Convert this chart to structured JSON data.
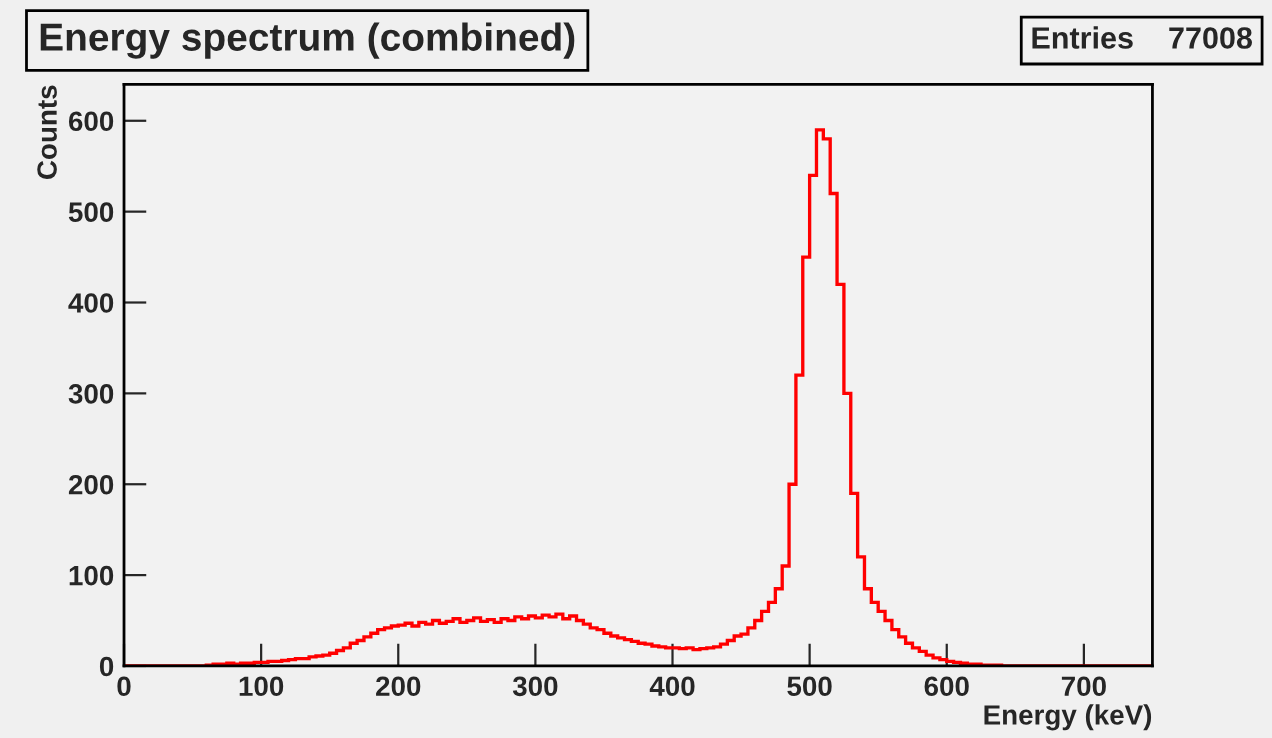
{
  "chart_data": {
    "type": "histogram",
    "title": "Energy spectrum (combined)",
    "xlabel": "Energy (keV)",
    "ylabel": "Counts",
    "annotations": [
      "Entries    77008"
    ],
    "bins": [
      0,
      5,
      10,
      15,
      20,
      25,
      30,
      35,
      40,
      45,
      50,
      55,
      60,
      65,
      70,
      75,
      80,
      85,
      90,
      95,
      100,
      105,
      110,
      115,
      120,
      125,
      130,
      135,
      140,
      145,
      150,
      155,
      160,
      165,
      170,
      175,
      180,
      185,
      190,
      195,
      200,
      205,
      210,
      215,
      220,
      225,
      230,
      235,
      240,
      245,
      250,
      255,
      260,
      265,
      270,
      275,
      280,
      285,
      290,
      295,
      300,
      305,
      310,
      315,
      320,
      325,
      330,
      335,
      340,
      345,
      350,
      355,
      360,
      365,
      370,
      375,
      380,
      385,
      390,
      395,
      400,
      405,
      410,
      415,
      420,
      425,
      430,
      435,
      440,
      445,
      450,
      455,
      460,
      465,
      470,
      475,
      480,
      485,
      490,
      495,
      500,
      505,
      510,
      515,
      520,
      525,
      530,
      535,
      540,
      545,
      550,
      555,
      560,
      565,
      570,
      575,
      580,
      585,
      590,
      595,
      600,
      605,
      610,
      615,
      620,
      625,
      630,
      635,
      640,
      645,
      650,
      655,
      660,
      665,
      670,
      675,
      680,
      685,
      690,
      695,
      700,
      705,
      710,
      715,
      720,
      725,
      730,
      735,
      740,
      745,
      750
    ],
    "values": [
      0,
      0,
      0,
      0,
      0,
      0,
      0,
      0,
      0,
      0,
      0,
      0,
      1,
      2,
      2,
      3,
      2,
      3,
      3,
      4,
      4,
      5,
      5,
      6,
      7,
      8,
      8,
      10,
      11,
      12,
      14,
      17,
      20,
      25,
      28,
      32,
      36,
      40,
      42,
      44,
      45,
      47,
      44,
      48,
      46,
      50,
      47,
      49,
      52,
      48,
      50,
      53,
      49,
      51,
      48,
      52,
      50,
      54,
      52,
      55,
      53,
      56,
      54,
      57,
      52,
      55,
      50,
      46,
      42,
      40,
      36,
      33,
      31,
      29,
      27,
      25,
      24,
      22,
      21,
      20,
      20,
      19,
      20,
      18,
      19,
      20,
      21,
      24,
      28,
      33,
      35,
      42,
      50,
      60,
      70,
      85,
      110,
      200,
      320,
      450,
      540,
      590,
      580,
      520,
      420,
      300,
      190,
      120,
      85,
      70,
      60,
      50,
      40,
      32,
      25,
      20,
      16,
      12,
      9,
      7,
      5,
      4,
      3,
      2,
      2,
      1,
      1,
      1,
      0,
      0,
      0,
      0,
      0,
      0,
      0,
      0,
      0,
      0,
      0,
      0,
      0,
      0,
      0,
      0,
      0,
      0,
      0,
      0,
      0,
      0
    ],
    "color": "#ff0000",
    "xlim": [
      0,
      750
    ],
    "ylim": [
      0,
      640
    ],
    "xticks": [
      0,
      100,
      200,
      300,
      400,
      500,
      600,
      700
    ],
    "yticks": [
      0,
      100,
      200,
      300,
      400,
      500,
      600
    ],
    "grid": false,
    "legend": false
  }
}
